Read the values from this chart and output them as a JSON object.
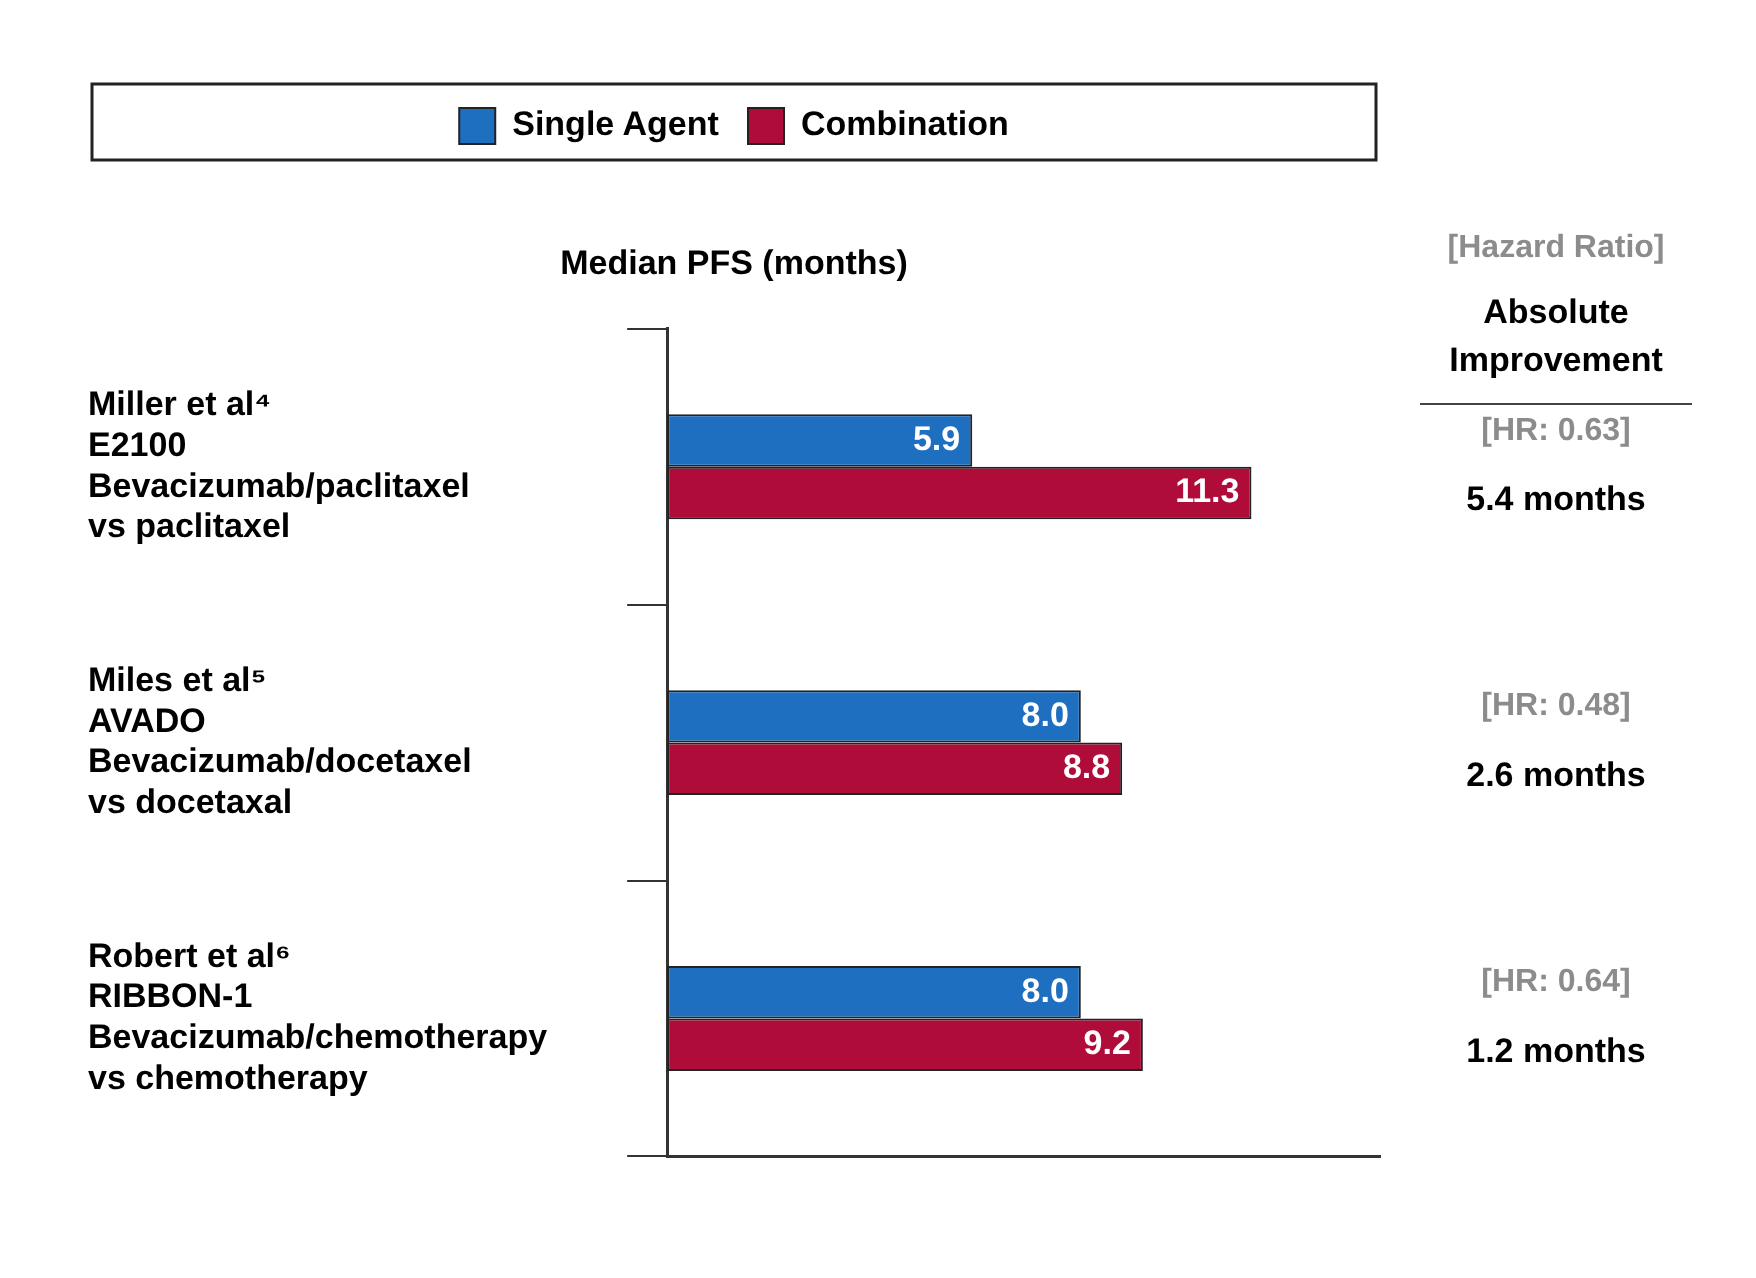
{
  "chart_data": {
    "type": "bar",
    "orientation": "horizontal",
    "xlabel": "Median PFS (months)",
    "categories": [
      "Miller et al⁴\nE2100\nBevacizumab/paclitaxel\nvs paclitaxel",
      "Miles et al⁵\nAVADO\nBevacizumab/docetaxel\nvs docetaxal",
      "Robert et al⁶\nRIBBON-1\nBevacizumab/chemotherapy\nvs chemotherapy"
    ],
    "series": [
      {
        "name": "Single Agent",
        "color": "#1f6fc0",
        "values": [
          5.9,
          8.0,
          8.0
        ],
        "value_labels": [
          "5.9",
          "8.0",
          "8.0"
        ]
      },
      {
        "name": "Combination",
        "color": "#b00c3a",
        "values": [
          11.3,
          8.8,
          9.2
        ],
        "value_labels": [
          "11.3",
          "8.8",
          "9.2"
        ]
      }
    ],
    "legend": "top",
    "annotations": [
      "[Hazard Ratio]",
      "Absolute\nImprovement",
      "[HR: 0.63]",
      "5.4 months",
      "[HR: 0.48]",
      "2.6 months",
      "[HR: 0.64]",
      "1.2 months"
    ]
  }
}
